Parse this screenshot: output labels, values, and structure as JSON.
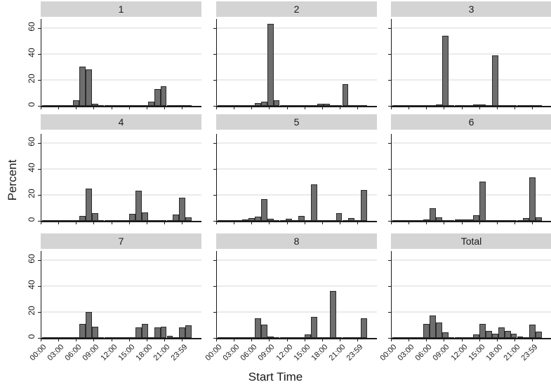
{
  "figure": {
    "ylabel": "Percent",
    "xlabel": "Start Time"
  },
  "chart_data": {
    "type": "bar",
    "subtype": "faceted-histogram",
    "layout": "3x3 panels (by-group), shared axes, horizontal gridlines on, no legend",
    "title": "",
    "xlabel": "Start Time",
    "ylabel": "Percent",
    "ylim": [
      0,
      67
    ],
    "y_ticks": [
      0,
      20,
      40,
      60
    ],
    "x_tick_labels": [
      "00:00",
      "03:00",
      "06:00",
      "09:00",
      "12:00",
      "15:00",
      "18:00",
      "21:00",
      "23:59"
    ],
    "x_tick_hours": [
      0,
      3,
      6,
      9,
      12,
      15,
      18,
      21,
      23.983
    ],
    "bin_unit": "hour of day, 24 one-hour bins per panel",
    "bin_hours": [
      0,
      1,
      2,
      3,
      4,
      5,
      6,
      7,
      8,
      9,
      10,
      11,
      12,
      13,
      14,
      15,
      16,
      17,
      18,
      19,
      20,
      21,
      22,
      23
    ],
    "series": [
      {
        "name": "1",
        "values": [
          0.3,
          0.7,
          0.7,
          0.7,
          0.7,
          4.5,
          30,
          28,
          1.5,
          0.7,
          0.6,
          0.6,
          0.6,
          0.6,
          0.6,
          0.7,
          0.7,
          3,
          13,
          15,
          0.7,
          0.7,
          0.7,
          0.7
        ]
      },
      {
        "name": "2",
        "values": [
          0.4,
          0.6,
          0.6,
          0.6,
          0.7,
          0.8,
          2,
          3.5,
          63,
          4.5,
          0.6,
          0.6,
          0.6,
          0.6,
          0.7,
          0.7,
          1.5,
          1.5,
          0.6,
          0.6,
          17,
          0.7,
          0.7,
          0.4
        ]
      },
      {
        "name": "3",
        "values": [
          0.3,
          0.6,
          0.6,
          0.6,
          0.6,
          0.7,
          0.7,
          1.2,
          54,
          0.7,
          0.6,
          0.7,
          0.7,
          1,
          1,
          0.7,
          39,
          0.7,
          0.7,
          0.6,
          0.6,
          0.6,
          0.6,
          0.4
        ]
      },
      {
        "name": "4",
        "values": [
          0.3,
          0.6,
          0.6,
          0.6,
          0.6,
          0.7,
          4,
          25,
          6,
          0.7,
          0.6,
          0.6,
          0.6,
          0.7,
          5.5,
          23,
          6.5,
          0.7,
          0.4,
          0.6,
          0.6,
          5,
          18,
          2.5
        ]
      },
      {
        "name": "5",
        "values": [
          0.4,
          0.5,
          0.6,
          0.7,
          1,
          2,
          3.5,
          17,
          1.5,
          0.5,
          0.6,
          1.5,
          0.7,
          4,
          0.7,
          28,
          0.5,
          0.6,
          0.6,
          6,
          0.7,
          2,
          0.7,
          24
        ]
      },
      {
        "name": "6",
        "values": [
          0.4,
          0.5,
          0.5,
          0.5,
          0.6,
          1.2,
          9.5,
          2.5,
          0.8,
          0.7,
          1.2,
          1.3,
          1.2,
          4.5,
          30,
          0.6,
          0.5,
          0.5,
          0.5,
          0.5,
          0.6,
          2,
          33.5,
          2.5
        ]
      },
      {
        "name": "7",
        "values": [
          0.3,
          0.6,
          0.6,
          0.6,
          0.6,
          0.8,
          11,
          20,
          8.5,
          0.7,
          0.5,
          0.6,
          0.7,
          0.7,
          0.6,
          8,
          11,
          0.7,
          8,
          8.5,
          1.5,
          0.6,
          8,
          9.5
        ]
      },
      {
        "name": "8",
        "values": [
          0.3,
          0.8,
          0.8,
          0.8,
          0.5,
          0.6,
          15,
          10,
          1,
          0.5,
          0.4,
          0.5,
          0.5,
          0.6,
          2.5,
          16,
          0.4,
          0.5,
          36,
          0.5,
          0.8,
          0.8,
          0.5,
          15
        ]
      },
      {
        "name": "Total",
        "values": [
          0.3,
          0.5,
          0.7,
          0.7,
          0.7,
          11,
          17.5,
          12,
          4.5,
          0.5,
          0.6,
          0.7,
          0.7,
          2.5,
          11,
          5.5,
          3.3,
          8,
          5.5,
          3,
          1,
          0.7,
          10,
          5
        ]
      }
    ],
    "colors": {
      "bar_fill": "#6e6e6e",
      "bar_border": "#2b2b2b",
      "panel_header_bg": "#d4d4d4",
      "gridline": "#ebebeb",
      "axis": "#1a1a1a",
      "background": "#ffffff"
    }
  }
}
